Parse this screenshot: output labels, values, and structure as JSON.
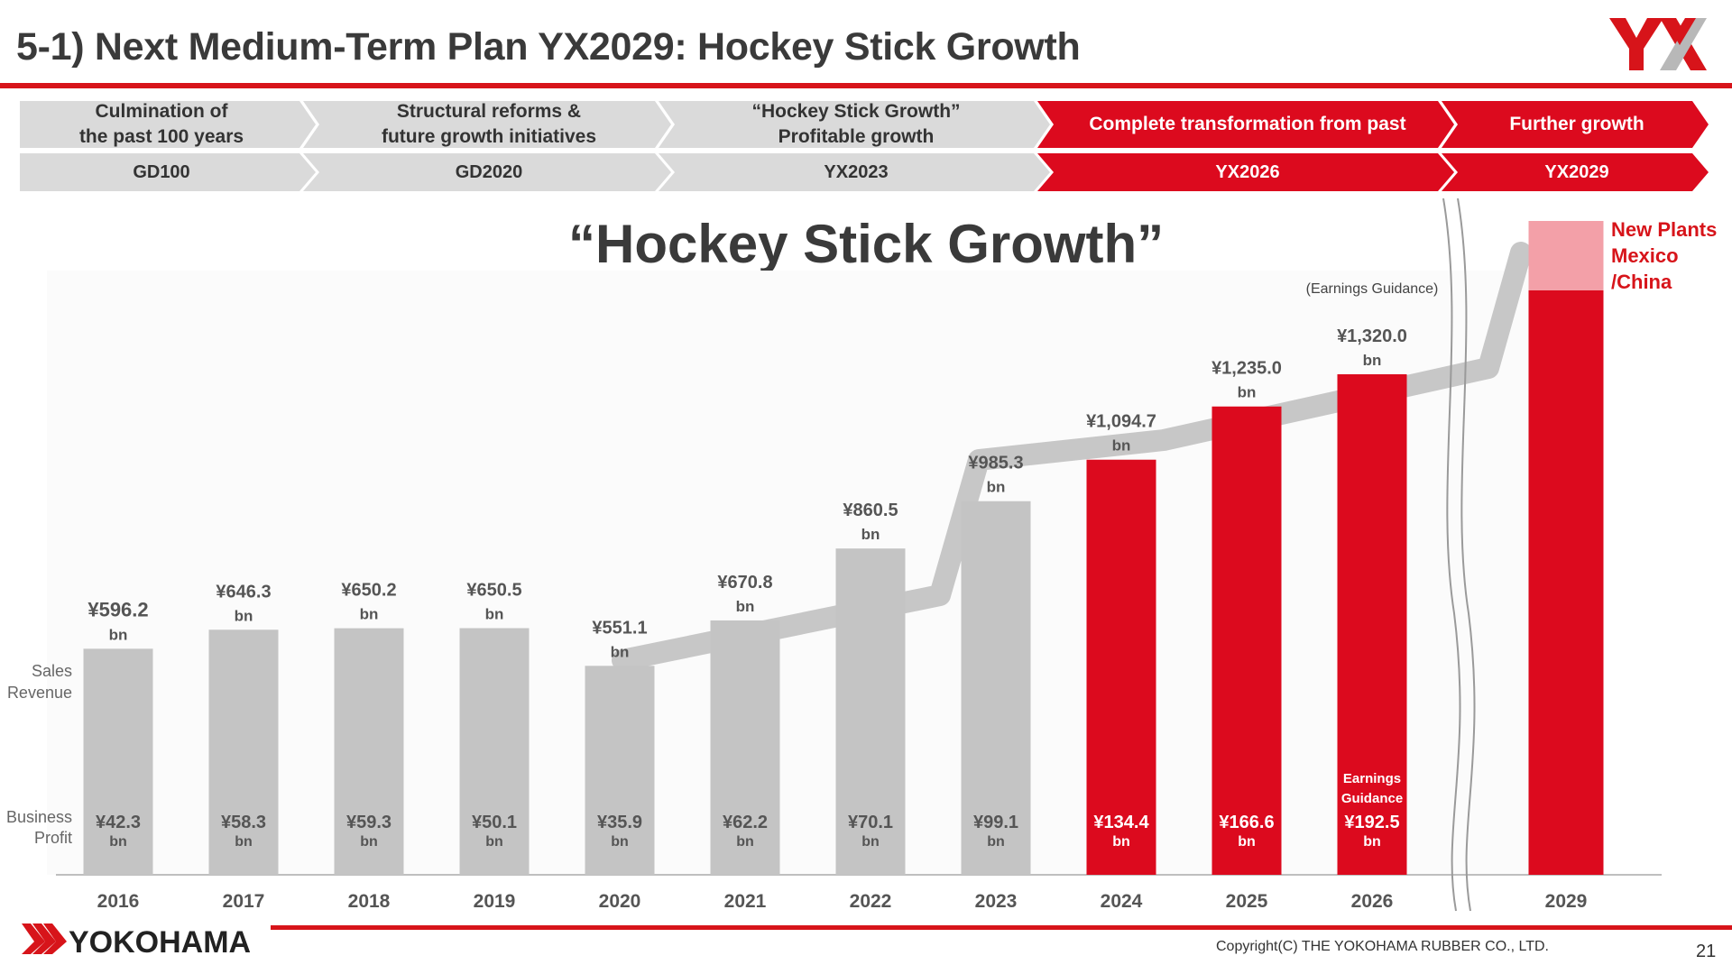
{
  "header": {
    "title": "5-1) Next Medium-Term Plan YX2029: Hockey Stick Growth",
    "logo_text": "YX"
  },
  "phases": [
    {
      "top": "Culmination of\nthe past 100 years",
      "plan": "GD100",
      "style": "gray"
    },
    {
      "top": "Structural reforms &\nfuture growth initiatives",
      "plan": "GD2020",
      "style": "gray"
    },
    {
      "top": "“Hockey Stick Growth”\nProfitable growth",
      "plan": "YX2023",
      "style": "gray"
    },
    {
      "top": "Complete transformation from past",
      "plan": "YX2026",
      "style": "red"
    },
    {
      "top": "Further growth",
      "plan": "YX2029",
      "style": "red"
    }
  ],
  "headline": "“Hockey Stick Growth”",
  "chart_data": {
    "type": "bar",
    "categories": [
      "2016",
      "2017",
      "2018",
      "2019",
      "2020",
      "2021",
      "2022",
      "2023",
      "2024",
      "2025",
      "2026",
      "2029"
    ],
    "series": [
      {
        "name": "Sales Revenue",
        "unit": "bn",
        "values": [
          596.2,
          646.3,
          650.2,
          650.5,
          551.1,
          670.8,
          860.5,
          985.3,
          1094.7,
          1235.0,
          1320.0,
          null
        ],
        "labels": [
          "¥596.2",
          "¥646.3",
          "¥650.2",
          "¥650.5",
          "¥551.1",
          "¥670.8",
          "¥860.5",
          "¥985.3",
          "¥1,094.7",
          "¥1,235.0",
          "¥1,320.0",
          ""
        ]
      },
      {
        "name": "Business Profit",
        "unit": "bn",
        "values": [
          42.3,
          58.3,
          59.3,
          50.1,
          35.9,
          62.2,
          70.1,
          99.1,
          134.4,
          166.6,
          192.5,
          null
        ],
        "labels": [
          "¥42.3",
          "¥58.3",
          "¥59.3",
          "¥50.1",
          "¥35.9",
          "¥62.2",
          "¥70.1",
          "¥99.1",
          "¥134.4",
          "¥166.6",
          "¥192.5",
          ""
        ]
      }
    ],
    "row_labels": {
      "sales": [
        "Sales",
        "Revenue"
      ],
      "profit": [
        "Business",
        "Profit"
      ]
    },
    "bar_colors": [
      "gray",
      "gray",
      "gray",
      "gray",
      "gray",
      "gray",
      "gray",
      "gray",
      "red",
      "red",
      "red",
      "red"
    ],
    "guidance_year": "2026",
    "guidance_note_sales": "(Earnings Guidance)",
    "guidance_note_profit": [
      "Earnings",
      "Guidance"
    ],
    "target_year": "2029",
    "target_note": [
      "New Plants",
      "Mexico",
      "/China"
    ],
    "colors": {
      "gray": "#c4c4c4",
      "red": "#dc0a1e",
      "light_red": "#f3a0a8",
      "band": "#bdbdbd"
    }
  },
  "footer": {
    "company": "YOKOHAMA",
    "copyright": "Copyright(C) THE YOKOHAMA RUBBER CO., LTD.",
    "page": "21"
  }
}
